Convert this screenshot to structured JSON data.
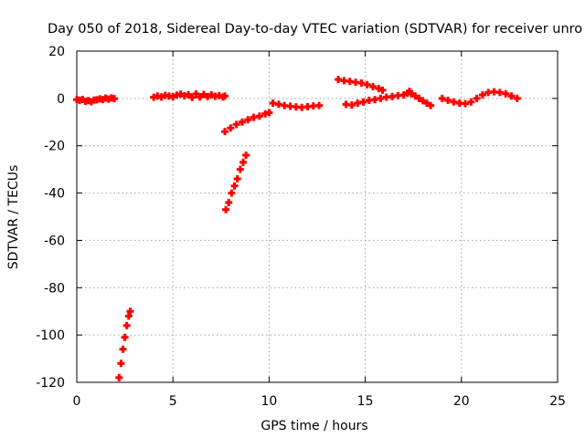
{
  "chart_data": {
    "type": "scatter",
    "title": "Day 050 of 2018, Sidereal Day-to-day VTEC variation (SDTVAR) for receiver unro",
    "xlabel": "GPS time / hours",
    "ylabel": "SDTVAR / TECUs",
    "xlim": [
      0,
      25
    ],
    "ylim": [
      -120,
      20
    ],
    "xticks": [
      0,
      5,
      10,
      15,
      20,
      25
    ],
    "yticks": [
      -120,
      -100,
      -80,
      -60,
      -40,
      -20,
      0,
      20
    ],
    "grid": true,
    "marker": "+",
    "color": "#ff0000",
    "series": [
      {
        "values": [
          [
            0.0,
            -0.5
          ],
          [
            0.15,
            -0.8
          ],
          [
            0.3,
            -0.4
          ],
          [
            0.45,
            -1.2
          ],
          [
            0.6,
            -0.9
          ],
          [
            0.75,
            -1.4
          ],
          [
            0.9,
            -0.7
          ],
          [
            1.05,
            -0.6
          ],
          [
            1.2,
            -0.2
          ],
          [
            1.35,
            -0.5
          ],
          [
            1.5,
            0.1
          ],
          [
            1.65,
            -0.3
          ],
          [
            1.8,
            0.2
          ],
          [
            1.95,
            -0.1
          ],
          [
            2.2,
            -118
          ],
          [
            2.3,
            -112
          ],
          [
            2.4,
            -106
          ],
          [
            2.5,
            -101
          ],
          [
            2.6,
            -96
          ],
          [
            2.7,
            -92
          ],
          [
            2.78,
            -90
          ],
          [
            4.0,
            0.5
          ],
          [
            4.2,
            1.0
          ],
          [
            4.4,
            0.6
          ],
          [
            4.6,
            1.3
          ],
          [
            4.8,
            1.0
          ],
          [
            5.0,
            0.7
          ],
          [
            5.2,
            1.4
          ],
          [
            5.4,
            1.8
          ],
          [
            5.6,
            1.1
          ],
          [
            5.8,
            1.6
          ],
          [
            6.0,
            0.4
          ],
          [
            6.2,
            1.9
          ],
          [
            6.4,
            0.6
          ],
          [
            6.6,
            1.7
          ],
          [
            6.8,
            0.8
          ],
          [
            7.0,
            1.5
          ],
          [
            7.2,
            0.9
          ],
          [
            7.4,
            1.2
          ],
          [
            7.6,
            0.6
          ],
          [
            7.7,
            1.0
          ],
          [
            7.75,
            -47
          ],
          [
            7.9,
            -44
          ],
          [
            8.05,
            -40
          ],
          [
            8.2,
            -37
          ],
          [
            8.35,
            -34
          ],
          [
            8.5,
            -30
          ],
          [
            8.65,
            -27
          ],
          [
            8.8,
            -24
          ],
          [
            7.7,
            -14
          ],
          [
            8.0,
            -12.5
          ],
          [
            8.3,
            -11
          ],
          [
            8.6,
            -10
          ],
          [
            8.9,
            -9
          ],
          [
            9.2,
            -8
          ],
          [
            9.5,
            -7.5
          ],
          [
            9.8,
            -6.5
          ],
          [
            10.0,
            -6
          ],
          [
            10.2,
            -2
          ],
          [
            10.5,
            -2.5
          ],
          [
            10.8,
            -3
          ],
          [
            11.1,
            -3.3
          ],
          [
            11.4,
            -3.6
          ],
          [
            11.7,
            -3.8
          ],
          [
            12.0,
            -3.5
          ],
          [
            12.3,
            -3.2
          ],
          [
            12.6,
            -3.0
          ],
          [
            13.6,
            8
          ],
          [
            13.9,
            7.5
          ],
          [
            14.2,
            7.2
          ],
          [
            14.5,
            6.8
          ],
          [
            14.8,
            6.5
          ],
          [
            15.1,
            5.8
          ],
          [
            15.4,
            5.0
          ],
          [
            15.7,
            4.2
          ],
          [
            15.9,
            3.5
          ],
          [
            14.0,
            -2.5
          ],
          [
            14.3,
            -2.8
          ],
          [
            14.6,
            -2.0
          ],
          [
            14.9,
            -1.5
          ],
          [
            15.2,
            -0.8
          ],
          [
            15.5,
            -0.5
          ],
          [
            15.8,
            0.0
          ],
          [
            16.1,
            0.5
          ],
          [
            16.4,
            0.8
          ],
          [
            16.7,
            1.2
          ],
          [
            17.0,
            1.5
          ],
          [
            17.2,
            2.2
          ],
          [
            17.3,
            3.0
          ],
          [
            17.4,
            2.0
          ],
          [
            17.6,
            1.0
          ],
          [
            17.8,
            0.0
          ],
          [
            18.0,
            -1.0
          ],
          [
            18.2,
            -2.0
          ],
          [
            18.4,
            -3.0
          ],
          [
            19.0,
            0.0
          ],
          [
            19.3,
            -0.8
          ],
          [
            19.6,
            -1.5
          ],
          [
            19.9,
            -2.0
          ],
          [
            20.2,
            -2.2
          ],
          [
            20.5,
            -1.5
          ],
          [
            20.8,
            0.0
          ],
          [
            21.1,
            1.5
          ],
          [
            21.4,
            2.5
          ],
          [
            21.7,
            2.8
          ],
          [
            22.0,
            2.5
          ],
          [
            22.3,
            2.0
          ],
          [
            22.6,
            1.0
          ],
          [
            22.9,
            0.0
          ]
        ]
      }
    ]
  }
}
